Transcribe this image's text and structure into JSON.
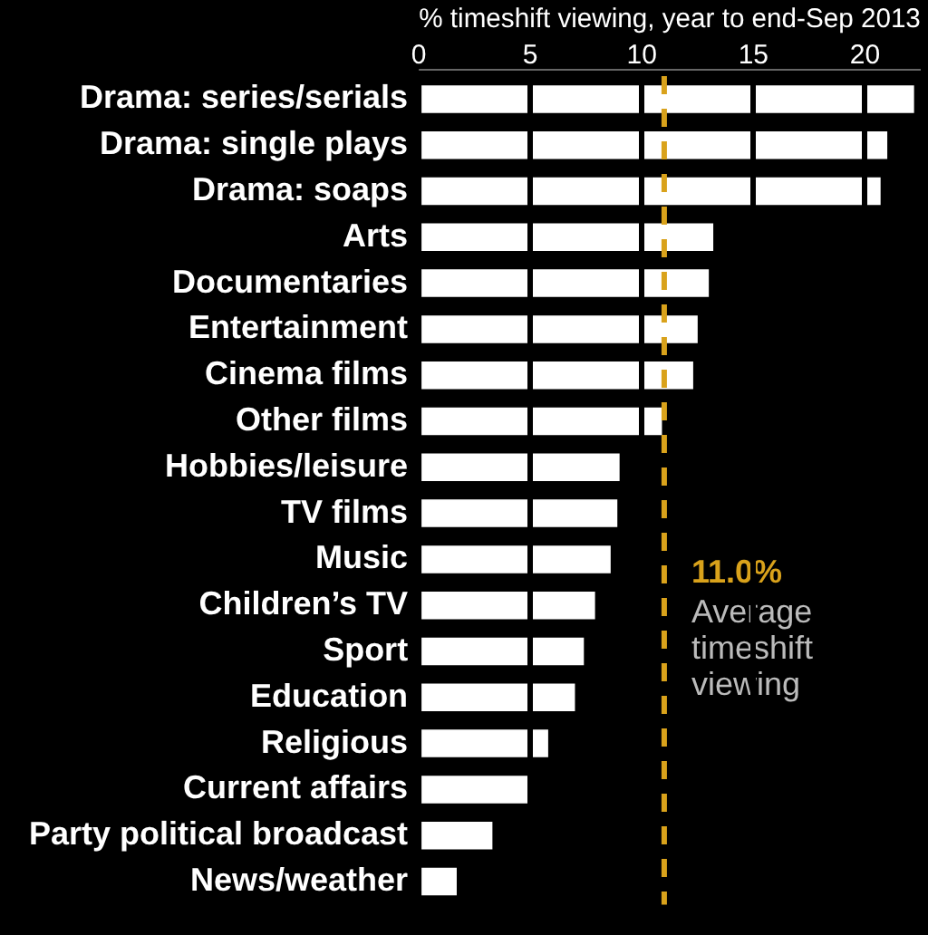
{
  "chart_data": {
    "type": "bar",
    "orientation": "horizontal",
    "xlabel": "% timeshift viewing, year to end-Sep 2013",
    "categories": [
      "Drama: series/serials",
      "Drama: single plays",
      "Drama: soaps",
      "Arts",
      "Documentaries",
      "Entertainment",
      "Cinema films",
      "Other films",
      "Hobbies/leisure",
      "TV films",
      "Music",
      "Children’s TV",
      "Sport",
      "Education",
      "Religious",
      "Current affairs",
      "Party political broadcast",
      "News/weather"
    ],
    "values": [
      22.2,
      21.0,
      20.7,
      13.2,
      13.0,
      12.5,
      12.3,
      10.9,
      9.0,
      8.9,
      8.6,
      7.9,
      7.4,
      7.0,
      5.8,
      4.9,
      3.3,
      1.7
    ],
    "color": "#ffffff",
    "xlim": [
      0,
      22.5
    ],
    "xticks": [
      0,
      5,
      10,
      15,
      20
    ],
    "grid": "x",
    "ref_lines": [
      {
        "axis": "x",
        "value": 11.0,
        "label": "11.0%",
        "color": "#d9a21b",
        "line_style": "dashed"
      }
    ],
    "annotations": [
      "Average timeshift viewing"
    ]
  }
}
